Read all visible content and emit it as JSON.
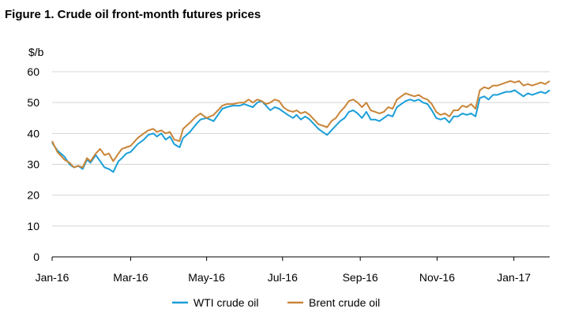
{
  "title": "Figure 1. Crude oil front-month futures prices",
  "chart_data": {
    "type": "line",
    "title": "Figure 1. Crude oil front-month futures prices",
    "ylabel": "$/b",
    "xlabel": "",
    "ylim": [
      0,
      60
    ],
    "yticks": [
      0,
      10,
      20,
      30,
      40,
      50,
      60
    ],
    "xlim": [
      1,
      58
    ],
    "xticks": [
      {
        "label": "Jan-16",
        "week": 1
      },
      {
        "label": "Mar-16",
        "week": 10
      },
      {
        "label": "May-16",
        "week": 18.7
      },
      {
        "label": "Jul-16",
        "week": 27.4
      },
      {
        "label": "Sep-16",
        "week": 36.3
      },
      {
        "label": "Nov-16",
        "week": 45.1
      },
      {
        "label": "Jan-17",
        "week": 53.9
      }
    ],
    "x_unit": "approximate week index starting at the first trading week of Jan-16",
    "grid": "horizontal",
    "legend_position": "bottom",
    "series": [
      {
        "name": "WTI crude oil",
        "color": "#1a9fd8",
        "points": [
          [
            1,
            37
          ],
          [
            1.6,
            34.5
          ],
          [
            2.4,
            32.5
          ],
          [
            3,
            30
          ],
          [
            3.5,
            29
          ],
          [
            4,
            29.5
          ],
          [
            4.5,
            28.5
          ],
          [
            5,
            31.5
          ],
          [
            5.4,
            30.5
          ],
          [
            6,
            33
          ],
          [
            6.5,
            31
          ],
          [
            7,
            29
          ],
          [
            7.5,
            28.5
          ],
          [
            8,
            27.5
          ],
          [
            8.6,
            31
          ],
          [
            9,
            32
          ],
          [
            9.5,
            33.5
          ],
          [
            10,
            34
          ],
          [
            10.8,
            36.5
          ],
          [
            11.5,
            38
          ],
          [
            12,
            39.5
          ],
          [
            12.6,
            40
          ],
          [
            13,
            39
          ],
          [
            13.5,
            40
          ],
          [
            14,
            38
          ],
          [
            14.5,
            39
          ],
          [
            15,
            36.5
          ],
          [
            15.6,
            35.5
          ],
          [
            16,
            38.5
          ],
          [
            16.8,
            40.5
          ],
          [
            17.5,
            43
          ],
          [
            18,
            44.5
          ],
          [
            18.7,
            45
          ],
          [
            19.5,
            44
          ],
          [
            20,
            46
          ],
          [
            20.5,
            48
          ],
          [
            21,
            48.5
          ],
          [
            21.7,
            49
          ],
          [
            22.5,
            49
          ],
          [
            23,
            49.5
          ],
          [
            23.5,
            49
          ],
          [
            24,
            48.5
          ],
          [
            24.5,
            50
          ],
          [
            25,
            50.5
          ],
          [
            25.5,
            49
          ],
          [
            26,
            47.5
          ],
          [
            26.5,
            48.5
          ],
          [
            27,
            48
          ],
          [
            27.5,
            47
          ],
          [
            28,
            46
          ],
          [
            28.6,
            45
          ],
          [
            29,
            46
          ],
          [
            29.5,
            44.5
          ],
          [
            30,
            45.5
          ],
          [
            30.5,
            44.5
          ],
          [
            31,
            43
          ],
          [
            31.5,
            41.5
          ],
          [
            32,
            40.5
          ],
          [
            32.5,
            39.5
          ],
          [
            33,
            41
          ],
          [
            33.5,
            42.5
          ],
          [
            34,
            44
          ],
          [
            34.5,
            45
          ],
          [
            35,
            47
          ],
          [
            35.5,
            47.5
          ],
          [
            36,
            46.5
          ],
          [
            36.5,
            45
          ],
          [
            37,
            47
          ],
          [
            37.5,
            44.5
          ],
          [
            38,
            44.5
          ],
          [
            38.5,
            44
          ],
          [
            39,
            45
          ],
          [
            39.5,
            46
          ],
          [
            40,
            45.5
          ],
          [
            40.5,
            48.5
          ],
          [
            41,
            49.5
          ],
          [
            41.5,
            50.5
          ],
          [
            42,
            51
          ],
          [
            42.5,
            50.5
          ],
          [
            43,
            51
          ],
          [
            43.5,
            50
          ],
          [
            44,
            49.5
          ],
          [
            44.5,
            47.5
          ],
          [
            45,
            45
          ],
          [
            45.5,
            44.5
          ],
          [
            46,
            45
          ],
          [
            46.5,
            43.5
          ],
          [
            47,
            45.5
          ],
          [
            47.5,
            45.5
          ],
          [
            48,
            46.5
          ],
          [
            48.5,
            46
          ],
          [
            49,
            46.5
          ],
          [
            49.5,
            45.5
          ],
          [
            50,
            51.5
          ],
          [
            50.5,
            52
          ],
          [
            51,
            51
          ],
          [
            51.5,
            52.5
          ],
          [
            52,
            52.5
          ],
          [
            52.5,
            53
          ],
          [
            53,
            53.5
          ],
          [
            53.5,
            53.5
          ],
          [
            54,
            54
          ],
          [
            54.5,
            53
          ],
          [
            55,
            52
          ],
          [
            55.5,
            53
          ],
          [
            56,
            52.5
          ],
          [
            56.5,
            53
          ],
          [
            57,
            53.5
          ],
          [
            57.5,
            53
          ],
          [
            58,
            54
          ]
        ]
      },
      {
        "name": "Brent crude oil",
        "color": "#c98539",
        "points": [
          [
            1,
            37.5
          ],
          [
            1.6,
            34
          ],
          [
            2.4,
            31.5
          ],
          [
            3,
            30.5
          ],
          [
            3.5,
            29
          ],
          [
            4,
            29.5
          ],
          [
            4.5,
            29
          ],
          [
            5,
            32
          ],
          [
            5.4,
            31
          ],
          [
            6,
            33.5
          ],
          [
            6.5,
            35
          ],
          [
            7,
            33
          ],
          [
            7.5,
            33.5
          ],
          [
            8,
            31
          ],
          [
            8.6,
            33.5
          ],
          [
            9,
            35
          ],
          [
            9.5,
            35.5
          ],
          [
            10,
            36
          ],
          [
            10.8,
            38.5
          ],
          [
            11.5,
            40
          ],
          [
            12,
            41
          ],
          [
            12.6,
            41.5
          ],
          [
            13,
            40.5
          ],
          [
            13.5,
            41
          ],
          [
            14,
            40
          ],
          [
            14.5,
            40.5
          ],
          [
            15,
            38
          ],
          [
            15.6,
            37.5
          ],
          [
            16,
            41.5
          ],
          [
            16.8,
            43.5
          ],
          [
            17.5,
            45.5
          ],
          [
            18,
            46.5
          ],
          [
            18.7,
            45
          ],
          [
            19.5,
            46
          ],
          [
            20,
            47.5
          ],
          [
            20.5,
            49
          ],
          [
            21,
            49.5
          ],
          [
            21.7,
            49.5
          ],
          [
            22.5,
            50
          ],
          [
            23,
            50
          ],
          [
            23.5,
            51
          ],
          [
            24,
            50
          ],
          [
            24.5,
            51
          ],
          [
            25,
            50.5
          ],
          [
            25.5,
            49.5
          ],
          [
            26,
            50
          ],
          [
            26.5,
            51
          ],
          [
            27,
            50.5
          ],
          [
            27.5,
            48.5
          ],
          [
            28,
            47.5
          ],
          [
            28.6,
            47
          ],
          [
            29,
            47.5
          ],
          [
            29.5,
            46.5
          ],
          [
            30,
            47
          ],
          [
            30.5,
            46
          ],
          [
            31,
            44.5
          ],
          [
            31.5,
            43
          ],
          [
            32,
            42.5
          ],
          [
            32.5,
            42
          ],
          [
            33,
            44
          ],
          [
            33.5,
            45
          ],
          [
            34,
            47
          ],
          [
            34.5,
            48.5
          ],
          [
            35,
            50.5
          ],
          [
            35.5,
            51
          ],
          [
            36,
            50
          ],
          [
            36.5,
            48.5
          ],
          [
            37,
            50
          ],
          [
            37.5,
            47.5
          ],
          [
            38,
            47
          ],
          [
            38.5,
            46.5
          ],
          [
            39,
            47
          ],
          [
            39.5,
            48.5
          ],
          [
            40,
            48
          ],
          [
            40.5,
            51
          ],
          [
            41,
            52
          ],
          [
            41.5,
            53
          ],
          [
            42,
            52.5
          ],
          [
            42.5,
            52
          ],
          [
            43,
            52.5
          ],
          [
            43.5,
            51.5
          ],
          [
            44,
            51
          ],
          [
            44.5,
            49.5
          ],
          [
            45,
            47
          ],
          [
            45.5,
            46
          ],
          [
            46,
            46.5
          ],
          [
            46.5,
            45.5
          ],
          [
            47,
            47.5
          ],
          [
            47.5,
            47.5
          ],
          [
            48,
            49
          ],
          [
            48.5,
            48.5
          ],
          [
            49,
            49.5
          ],
          [
            49.5,
            48
          ],
          [
            50,
            54
          ],
          [
            50.5,
            55
          ],
          [
            51,
            54.5
          ],
          [
            51.5,
            55.5
          ],
          [
            52,
            55.5
          ],
          [
            52.5,
            56
          ],
          [
            53,
            56.5
          ],
          [
            53.5,
            57
          ],
          [
            54,
            56.5
          ],
          [
            54.5,
            57
          ],
          [
            55,
            55.5
          ],
          [
            55.5,
            56
          ],
          [
            56,
            55.5
          ],
          [
            56.5,
            56
          ],
          [
            57,
            56.5
          ],
          [
            57.5,
            56
          ],
          [
            58,
            57
          ]
        ]
      }
    ]
  }
}
